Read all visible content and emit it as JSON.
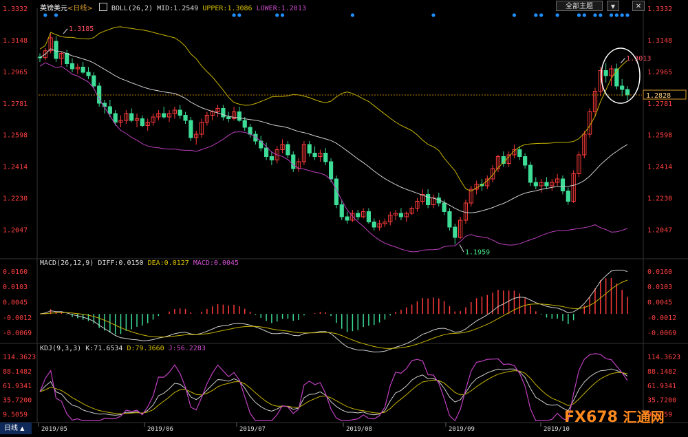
{
  "header": {
    "pair": "英镑美元",
    "period": "<日线>",
    "boll_label": "BOLL(26,2)",
    "mid_label": "MID:1.2549",
    "upper_label": "UPPER:1.3086",
    "lower_label": "LOWER:1.2013",
    "all_topics_button": "全部主题",
    "dropdown_icon": "dropdown-triangle-icon",
    "close_icon": "close-icon"
  },
  "colors": {
    "up": "#ff3b3b",
    "down": "#3ddc97",
    "upper": "#c8b400",
    "mid": "#d0d0d0",
    "lower": "#c040c0",
    "dots": "#1e8fff",
    "axis": "#b02020",
    "price_line": "#c08000"
  },
  "chart_data": [
    {
      "type": "candlestick",
      "name": "price",
      "y_ticks": [
        "1.3332",
        "1.3148",
        "1.2965",
        "1.2781",
        "1.2598",
        "1.2414",
        "1.2230",
        "1.2047"
      ],
      "ylim": [
        1.188,
        1.3332
      ],
      "x_labels": [
        "2019/05",
        "2019/06",
        "2019/07",
        "2019/08",
        "2019/09",
        "2019/10"
      ],
      "current_price": "1.2828",
      "annotations": [
        {
          "text": "1.3185",
          "x_date": "2019-05-08",
          "y": 1.3185
        },
        {
          "text": "1.1959",
          "x_date": "2019-09-03",
          "y": 1.1959
        },
        {
          "text": "1.3013",
          "x_date": "2019-10-21",
          "y": 1.3013
        }
      ],
      "ohlc": [
        [
          1.3048,
          1.307,
          1.302,
          1.3045
        ],
        [
          1.3045,
          1.31,
          1.303,
          1.3085
        ],
        [
          1.3085,
          1.3185,
          1.307,
          1.316
        ],
        [
          1.314,
          1.317,
          1.302,
          1.304
        ],
        [
          1.304,
          1.308,
          1.3,
          1.307
        ],
        [
          1.307,
          1.309,
          1.299,
          1.301
        ],
        [
          1.301,
          1.304,
          1.296,
          1.298
        ],
        [
          1.298,
          1.301,
          1.295,
          1.299
        ],
        [
          1.299,
          1.302,
          1.295,
          1.296
        ],
        [
          1.296,
          1.299,
          1.292,
          1.294
        ],
        [
          1.294,
          1.296,
          1.286,
          1.288
        ],
        [
          1.288,
          1.29,
          1.276,
          1.278
        ],
        [
          1.278,
          1.28,
          1.272,
          1.276
        ],
        [
          1.276,
          1.28,
          1.27,
          1.272
        ],
        [
          1.272,
          1.274,
          1.265,
          1.267
        ],
        [
          1.267,
          1.271,
          1.264,
          1.268
        ],
        [
          1.268,
          1.274,
          1.266,
          1.272
        ],
        [
          1.272,
          1.275,
          1.267,
          1.268
        ],
        [
          1.268,
          1.272,
          1.264,
          1.269
        ],
        [
          1.269,
          1.271,
          1.264,
          1.265
        ],
        [
          1.265,
          1.269,
          1.262,
          1.267
        ],
        [
          1.267,
          1.272,
          1.265,
          1.27
        ],
        [
          1.27,
          1.274,
          1.268,
          1.272
        ],
        [
          1.272,
          1.276,
          1.269,
          1.27
        ],
        [
          1.27,
          1.274,
          1.267,
          1.272
        ],
        [
          1.272,
          1.276,
          1.269,
          1.274
        ],
        [
          1.274,
          1.277,
          1.269,
          1.271
        ],
        [
          1.271,
          1.273,
          1.266,
          1.268
        ],
        [
          1.268,
          1.27,
          1.256,
          1.258
        ],
        [
          1.258,
          1.262,
          1.254,
          1.26
        ],
        [
          1.26,
          1.269,
          1.258,
          1.267
        ],
        [
          1.267,
          1.273,
          1.265,
          1.271
        ],
        [
          1.271,
          1.274,
          1.268,
          1.273
        ],
        [
          1.273,
          1.277,
          1.27,
          1.275
        ],
        [
          1.275,
          1.277,
          1.268,
          1.27
        ],
        [
          1.27,
          1.273,
          1.267,
          1.269
        ],
        [
          1.269,
          1.276,
          1.268,
          1.273
        ],
        [
          1.273,
          1.276,
          1.267,
          1.268
        ],
        [
          1.268,
          1.27,
          1.262,
          1.264
        ],
        [
          1.264,
          1.266,
          1.258,
          1.26
        ],
        [
          1.26,
          1.262,
          1.254,
          1.256
        ],
        [
          1.256,
          1.259,
          1.25,
          1.252
        ],
        [
          1.252,
          1.255,
          1.245,
          1.247
        ],
        [
          1.247,
          1.25,
          1.242,
          1.245
        ],
        [
          1.245,
          1.253,
          1.243,
          1.251
        ],
        [
          1.251,
          1.257,
          1.249,
          1.254
        ],
        [
          1.254,
          1.256,
          1.246,
          1.248
        ],
        [
          1.248,
          1.25,
          1.238,
          1.24
        ],
        [
          1.24,
          1.246,
          1.238,
          1.244
        ],
        [
          1.244,
          1.256,
          1.242,
          1.254
        ],
        [
          1.254,
          1.256,
          1.247,
          1.249
        ],
        [
          1.249,
          1.253,
          1.245,
          1.247
        ],
        [
          1.247,
          1.251,
          1.244,
          1.249
        ],
        [
          1.249,
          1.252,
          1.242,
          1.244
        ],
        [
          1.244,
          1.246,
          1.232,
          1.234
        ],
        [
          1.234,
          1.236,
          1.217,
          1.219
        ],
        [
          1.219,
          1.222,
          1.21,
          1.212
        ],
        [
          1.212,
          1.215,
          1.208,
          1.21
        ],
        [
          1.21,
          1.216,
          1.209,
          1.214
        ],
        [
          1.214,
          1.216,
          1.21,
          1.212
        ],
        [
          1.212,
          1.217,
          1.211,
          1.215
        ],
        [
          1.215,
          1.217,
          1.208,
          1.209
        ],
        [
          1.209,
          1.211,
          1.204,
          1.206
        ],
        [
          1.206,
          1.21,
          1.204,
          1.208
        ],
        [
          1.208,
          1.211,
          1.206,
          1.209
        ],
        [
          1.209,
          1.215,
          1.207,
          1.213
        ],
        [
          1.213,
          1.216,
          1.21,
          1.214
        ],
        [
          1.214,
          1.217,
          1.21,
          1.212
        ],
        [
          1.212,
          1.215,
          1.209,
          1.214
        ],
        [
          1.214,
          1.218,
          1.213,
          1.217
        ],
        [
          1.217,
          1.223,
          1.215,
          1.221
        ],
        [
          1.221,
          1.228,
          1.219,
          1.225
        ],
        [
          1.225,
          1.228,
          1.217,
          1.219
        ],
        [
          1.219,
          1.225,
          1.217,
          1.223
        ],
        [
          1.223,
          1.226,
          1.218,
          1.22
        ],
        [
          1.22,
          1.222,
          1.213,
          1.215
        ],
        [
          1.215,
          1.217,
          1.204,
          1.206
        ],
        [
          1.206,
          1.208,
          1.1959,
          1.2
        ],
        [
          1.2,
          1.212,
          1.199,
          1.21
        ],
        [
          1.21,
          1.222,
          1.208,
          1.22
        ],
        [
          1.22,
          1.23,
          1.218,
          1.228
        ],
        [
          1.228,
          1.233,
          1.225,
          1.231
        ],
        [
          1.231,
          1.234,
          1.227,
          1.23
        ],
        [
          1.23,
          1.236,
          1.228,
          1.234
        ],
        [
          1.234,
          1.242,
          1.232,
          1.24
        ],
        [
          1.24,
          1.248,
          1.238,
          1.247
        ],
        [
          1.247,
          1.25,
          1.241,
          1.243
        ],
        [
          1.243,
          1.25,
          1.241,
          1.248
        ],
        [
          1.248,
          1.254,
          1.246,
          1.251
        ],
        [
          1.251,
          1.253,
          1.245,
          1.247
        ],
        [
          1.247,
          1.249,
          1.24,
          1.242
        ],
        [
          1.242,
          1.244,
          1.23,
          1.232
        ],
        [
          1.232,
          1.235,
          1.228,
          1.23
        ],
        [
          1.23,
          1.234,
          1.226,
          1.232
        ],
        [
          1.232,
          1.235,
          1.228,
          1.23
        ],
        [
          1.23,
          1.234,
          1.227,
          1.232
        ],
        [
          1.232,
          1.237,
          1.23,
          1.234
        ],
        [
          1.234,
          1.236,
          1.225,
          1.227
        ],
        [
          1.227,
          1.229,
          1.219,
          1.221
        ],
        [
          1.221,
          1.239,
          1.22,
          1.237
        ],
        [
          1.237,
          1.25,
          1.235,
          1.248
        ],
        [
          1.248,
          1.262,
          1.246,
          1.26
        ],
        [
          1.26,
          1.275,
          1.258,
          1.273
        ],
        [
          1.273,
          1.287,
          1.27,
          1.285
        ],
        [
          1.285,
          1.299,
          1.282,
          1.297
        ],
        [
          1.297,
          1.3013,
          1.29,
          1.294
        ],
        [
          1.294,
          1.3,
          1.288,
          1.298
        ],
        [
          1.298,
          1.301,
          1.286,
          1.288
        ],
        [
          1.288,
          1.292,
          1.282,
          1.286
        ],
        [
          1.286,
          1.288,
          1.28,
          1.2828
        ]
      ]
    },
    {
      "type": "bar+line",
      "name": "MACD",
      "legend": {
        "title": "MACD(26,12,9)",
        "diff": "DIFF:0.0150",
        "dea": "DEA:0.0127",
        "macd": "MACD:0.0045"
      },
      "y_ticks": [
        "0.0160",
        "0.0103",
        "0.0045",
        "-0.0012",
        "-0.0069"
      ],
      "ylim": [
        -0.0105,
        0.0175
      ]
    },
    {
      "type": "line",
      "name": "KDJ",
      "legend": {
        "title": "KDJ(9,3,3)",
        "k": "K:71.6534",
        "d": "D:79.3660",
        "j": "J:56.2283"
      },
      "y_ticks": [
        "114.3623",
        "88.1482",
        "61.9341",
        "35.7200",
        "9.5059"
      ],
      "ylim": [
        -5,
        122
      ]
    }
  ],
  "bottom_tab": "日线",
  "watermark": {
    "brand": "FX678",
    "cn": "汇通网"
  }
}
